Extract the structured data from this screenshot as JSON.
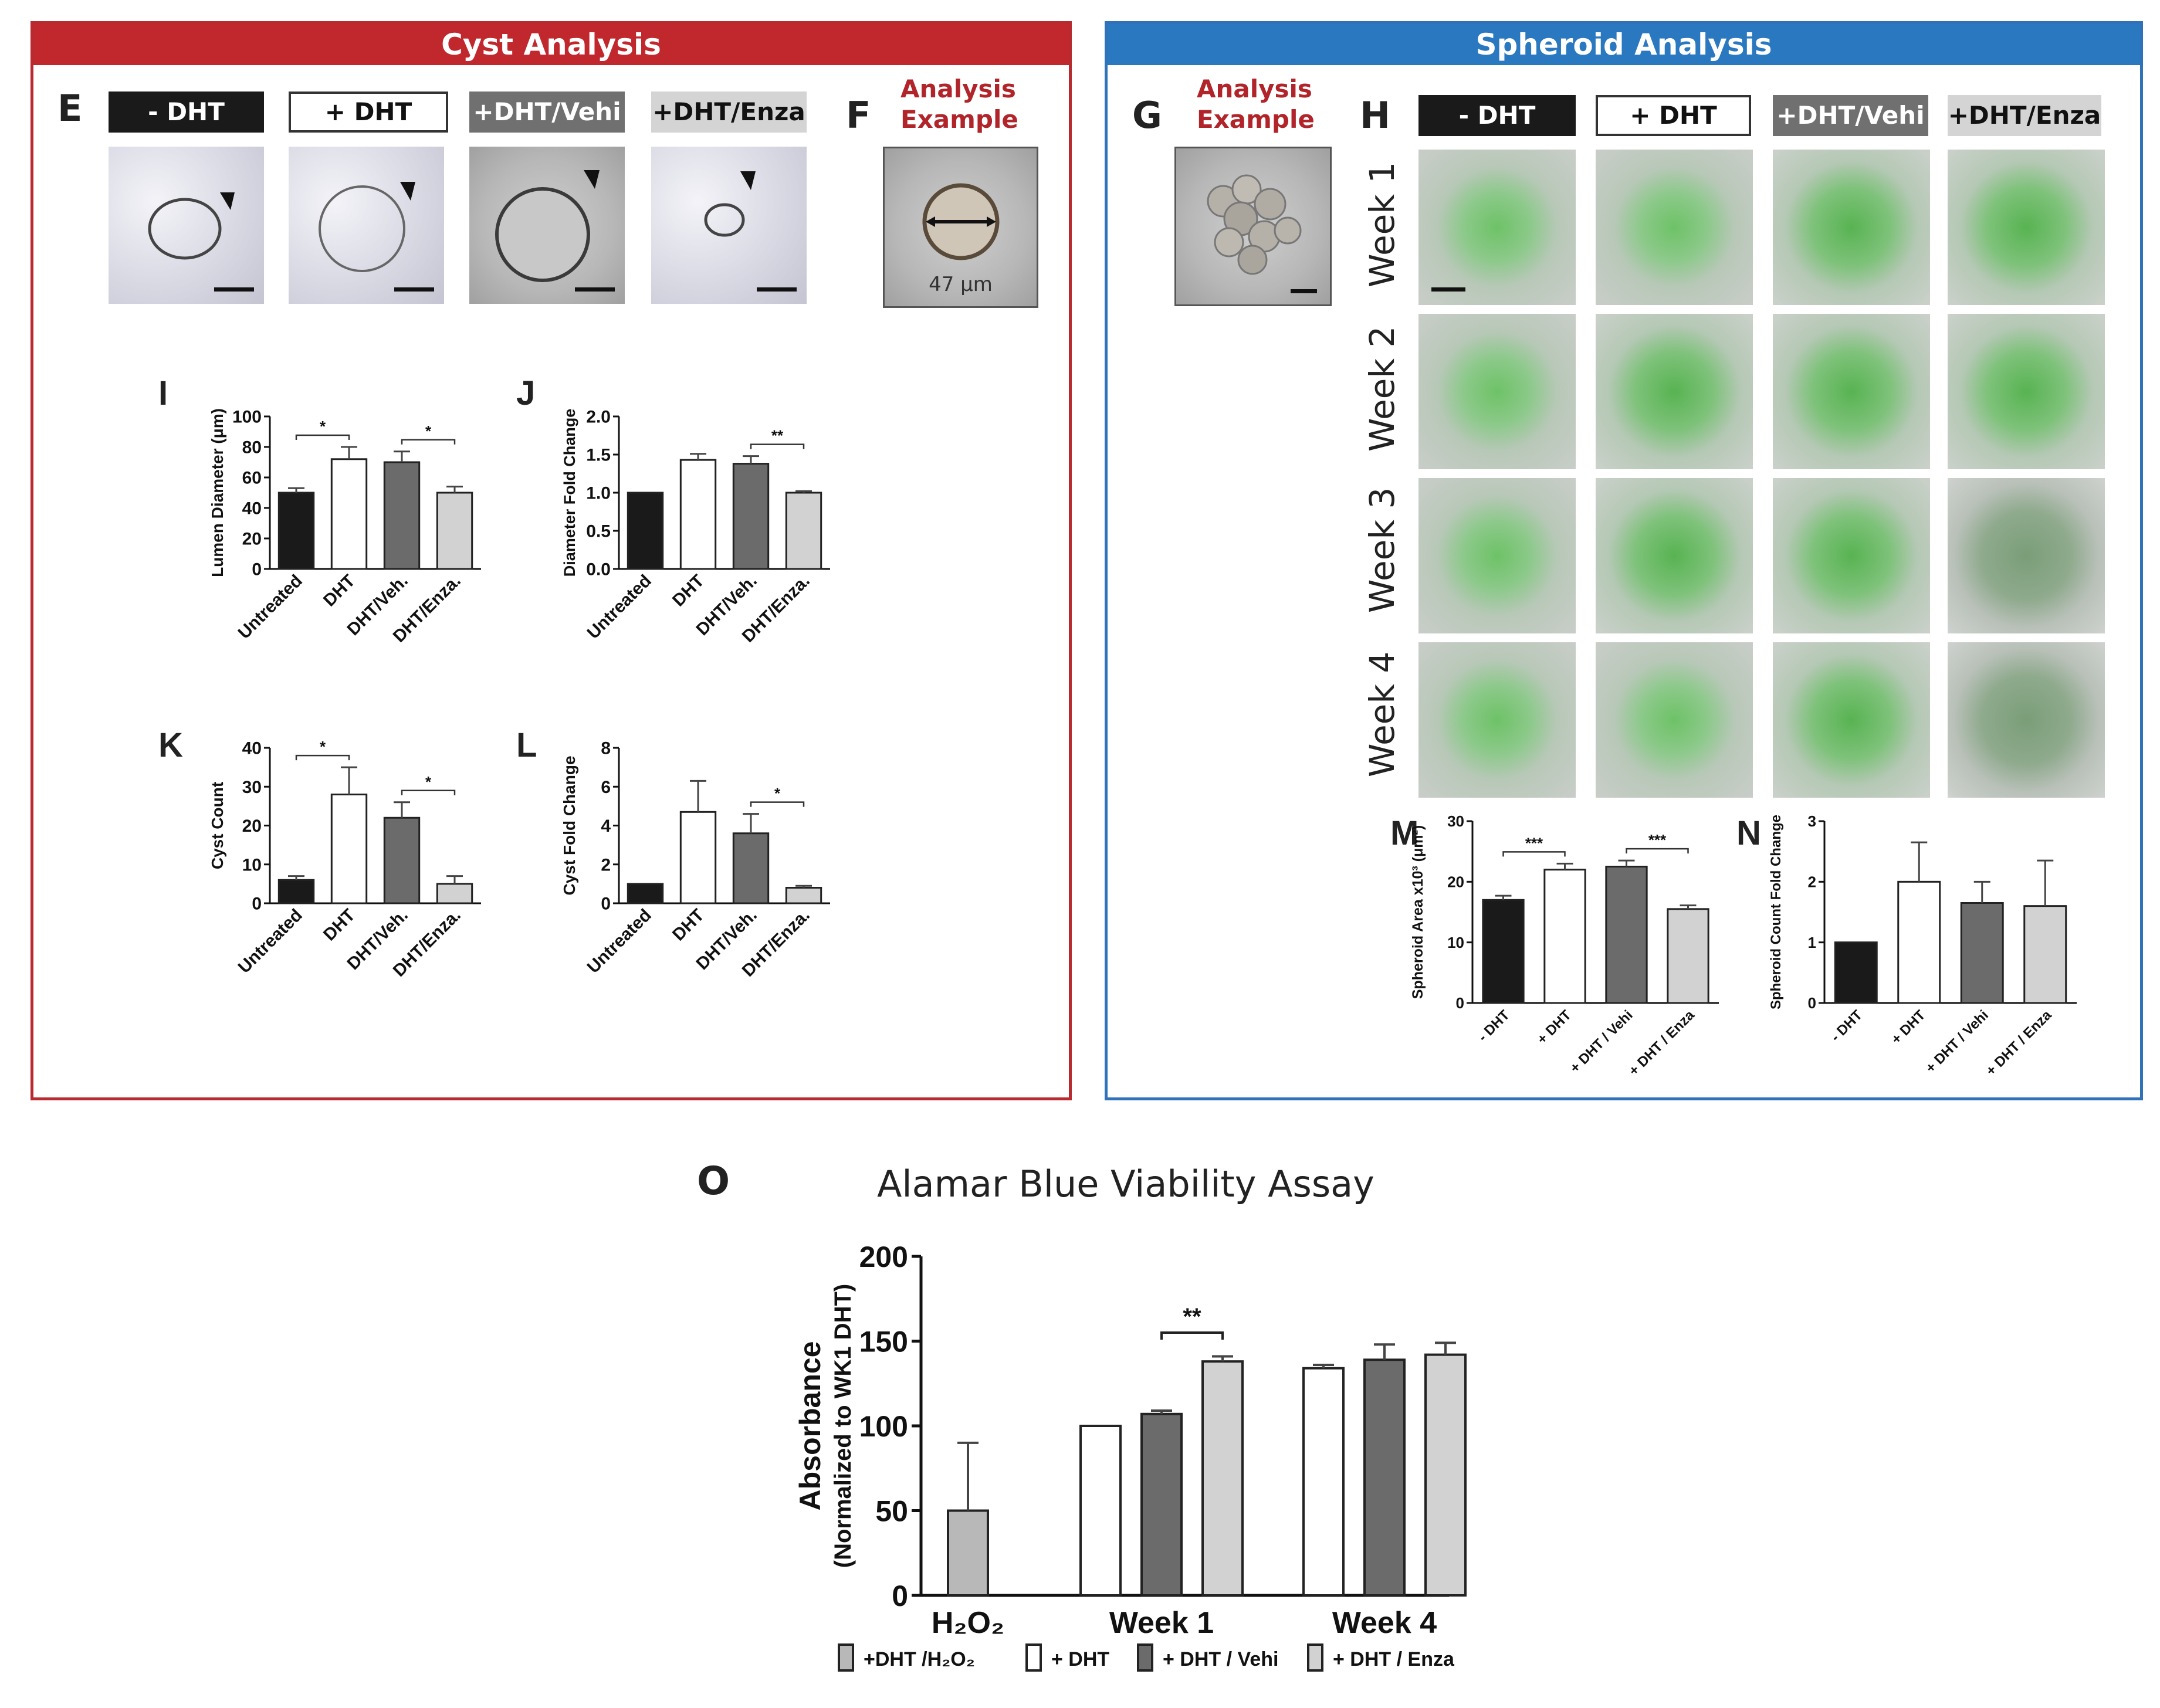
{
  "cyst_panel": {
    "title": "Cyst Analysis",
    "label_E": "E",
    "label_F": "F",
    "headers": [
      "- DHT",
      "+ DHT",
      "+DHT/Vehi",
      "+DHT/Enza"
    ],
    "analysis_example": [
      "Analysis",
      "Example"
    ],
    "example_measure": "47 μm"
  },
  "spheroid_panel": {
    "title": "Spheroid Analysis",
    "label_G": "G",
    "label_H": "H",
    "analysis_example": [
      "Analysis",
      "Example"
    ],
    "headers": [
      "- DHT",
      "+ DHT",
      "+DHT/Vehi",
      "+DHT/Enza"
    ],
    "weeks": [
      "Week 1",
      "Week 2",
      "Week 3",
      "Week 4"
    ]
  },
  "colors": {
    "black_bar": "#1a1a1a",
    "white_bar": "#ffffff",
    "dgray_bar": "#6b6b6b",
    "lgray_bar": "#d2d2d2",
    "h2o2_bar": "#b8b8b8",
    "cyst_red": "#c0282d",
    "spheroid_blue": "#2a78c0"
  },
  "chart_data": [
    {
      "id": "I",
      "label": "I",
      "type": "bar",
      "categories": [
        "Untreated",
        "DHT",
        "DHT/Veh.",
        "DHT/Enza."
      ],
      "values": [
        50,
        72,
        70,
        50
      ],
      "errors": [
        3,
        8,
        7,
        4
      ],
      "ylabel": "Lumen Diameter (μm)",
      "ylim": [
        0,
        100
      ],
      "yticks": [
        "0",
        "20",
        "40",
        "60",
        "80",
        "100"
      ],
      "significance": [
        {
          "from": 0,
          "to": 1,
          "text": "*"
        },
        {
          "from": 2,
          "to": 3,
          "text": "*"
        }
      ]
    },
    {
      "id": "J",
      "label": "J",
      "type": "bar",
      "categories": [
        "Untreated",
        "DHT",
        "DHT/Veh.",
        "DHT/Enza."
      ],
      "values": [
        1.0,
        1.43,
        1.38,
        1.0
      ],
      "errors": [
        0,
        0.08,
        0.1,
        0.02
      ],
      "ylabel": "Diameter Fold Change",
      "ylim": [
        0,
        2.0
      ],
      "yticks": [
        "0.0",
        "0.5",
        "1.0",
        "1.5",
        "2.0"
      ],
      "significance": [
        {
          "from": 2,
          "to": 3,
          "text": "**"
        }
      ]
    },
    {
      "id": "K",
      "label": "K",
      "type": "bar",
      "categories": [
        "Untreated",
        "DHT",
        "DHT/Veh.",
        "DHT/Enza."
      ],
      "values": [
        6,
        28,
        22,
        5
      ],
      "errors": [
        1,
        7,
        4,
        2
      ],
      "ylabel": "Cyst Count",
      "ylim": [
        0,
        40
      ],
      "yticks": [
        "0",
        "10",
        "20",
        "30",
        "40"
      ],
      "significance": [
        {
          "from": 0,
          "to": 1,
          "text": "*"
        },
        {
          "from": 2,
          "to": 3,
          "text": "*"
        }
      ]
    },
    {
      "id": "L",
      "label": "L",
      "type": "bar",
      "categories": [
        "Untreated",
        "DHT",
        "DHT/Veh.",
        "DHT/Enza."
      ],
      "values": [
        1.0,
        4.7,
        3.6,
        0.8
      ],
      "errors": [
        0,
        1.6,
        1.0,
        0.1
      ],
      "ylabel": "Cyst Fold Change",
      "ylim": [
        0,
        8
      ],
      "yticks": [
        "0",
        "2",
        "4",
        "6",
        "8"
      ],
      "significance": [
        {
          "from": 2,
          "to": 3,
          "text": "*"
        }
      ]
    },
    {
      "id": "M",
      "label": "M",
      "type": "bar",
      "categories": [
        "- DHT",
        "+ DHT",
        "+ DHT / Vehi",
        "+ DHT / Enza"
      ],
      "values": [
        17,
        22,
        22.5,
        15.5
      ],
      "errors": [
        0.7,
        1.0,
        1.0,
        0.6
      ],
      "ylabel": "Spheroid Area x10³ (μm²)",
      "ylim": [
        0,
        30
      ],
      "yticks": [
        "0",
        "10",
        "20",
        "30"
      ],
      "significance": [
        {
          "from": 0,
          "to": 1,
          "text": "***"
        },
        {
          "from": 2,
          "to": 3,
          "text": "***"
        }
      ]
    },
    {
      "id": "N",
      "label": "N",
      "type": "bar",
      "categories": [
        "- DHT",
        "+ DHT",
        "+ DHT / Vehi",
        "+ DHT / Enza"
      ],
      "values": [
        1.0,
        2.0,
        1.65,
        1.6
      ],
      "errors": [
        0,
        0.65,
        0.35,
        0.75
      ],
      "ylabel": "Spheroid Count Fold Change",
      "ylim": [
        0,
        3
      ],
      "yticks": [
        "0",
        "1",
        "2",
        "3"
      ],
      "significance": []
    },
    {
      "id": "O",
      "label": "O",
      "type": "bar",
      "title": "Alamar Blue Viability Assay",
      "groups": [
        "H₂O₂",
        "Week 1",
        "Week 4"
      ],
      "series": [
        {
          "name": "+DHT /H₂O₂",
          "values": [
            50,
            null,
            null
          ],
          "errors": [
            40,
            null,
            null
          ]
        },
        {
          "name": "+ DHT",
          "values": [
            null,
            100,
            134
          ],
          "errors": [
            null,
            0,
            2
          ]
        },
        {
          "name": "+ DHT / Vehi",
          "values": [
            null,
            107,
            139
          ],
          "errors": [
            null,
            2,
            9
          ]
        },
        {
          "name": "+ DHT / Enza",
          "values": [
            null,
            138,
            142
          ],
          "errors": [
            null,
            3,
            7
          ]
        }
      ],
      "ylabel": "Absorbance",
      "ylabel2": "(Normalized to WK1 DHT)",
      "ylim": [
        0,
        200
      ],
      "yticks": [
        "0",
        "50",
        "100",
        "150",
        "200"
      ],
      "significance": [
        {
          "text": "**"
        }
      ]
    }
  ]
}
